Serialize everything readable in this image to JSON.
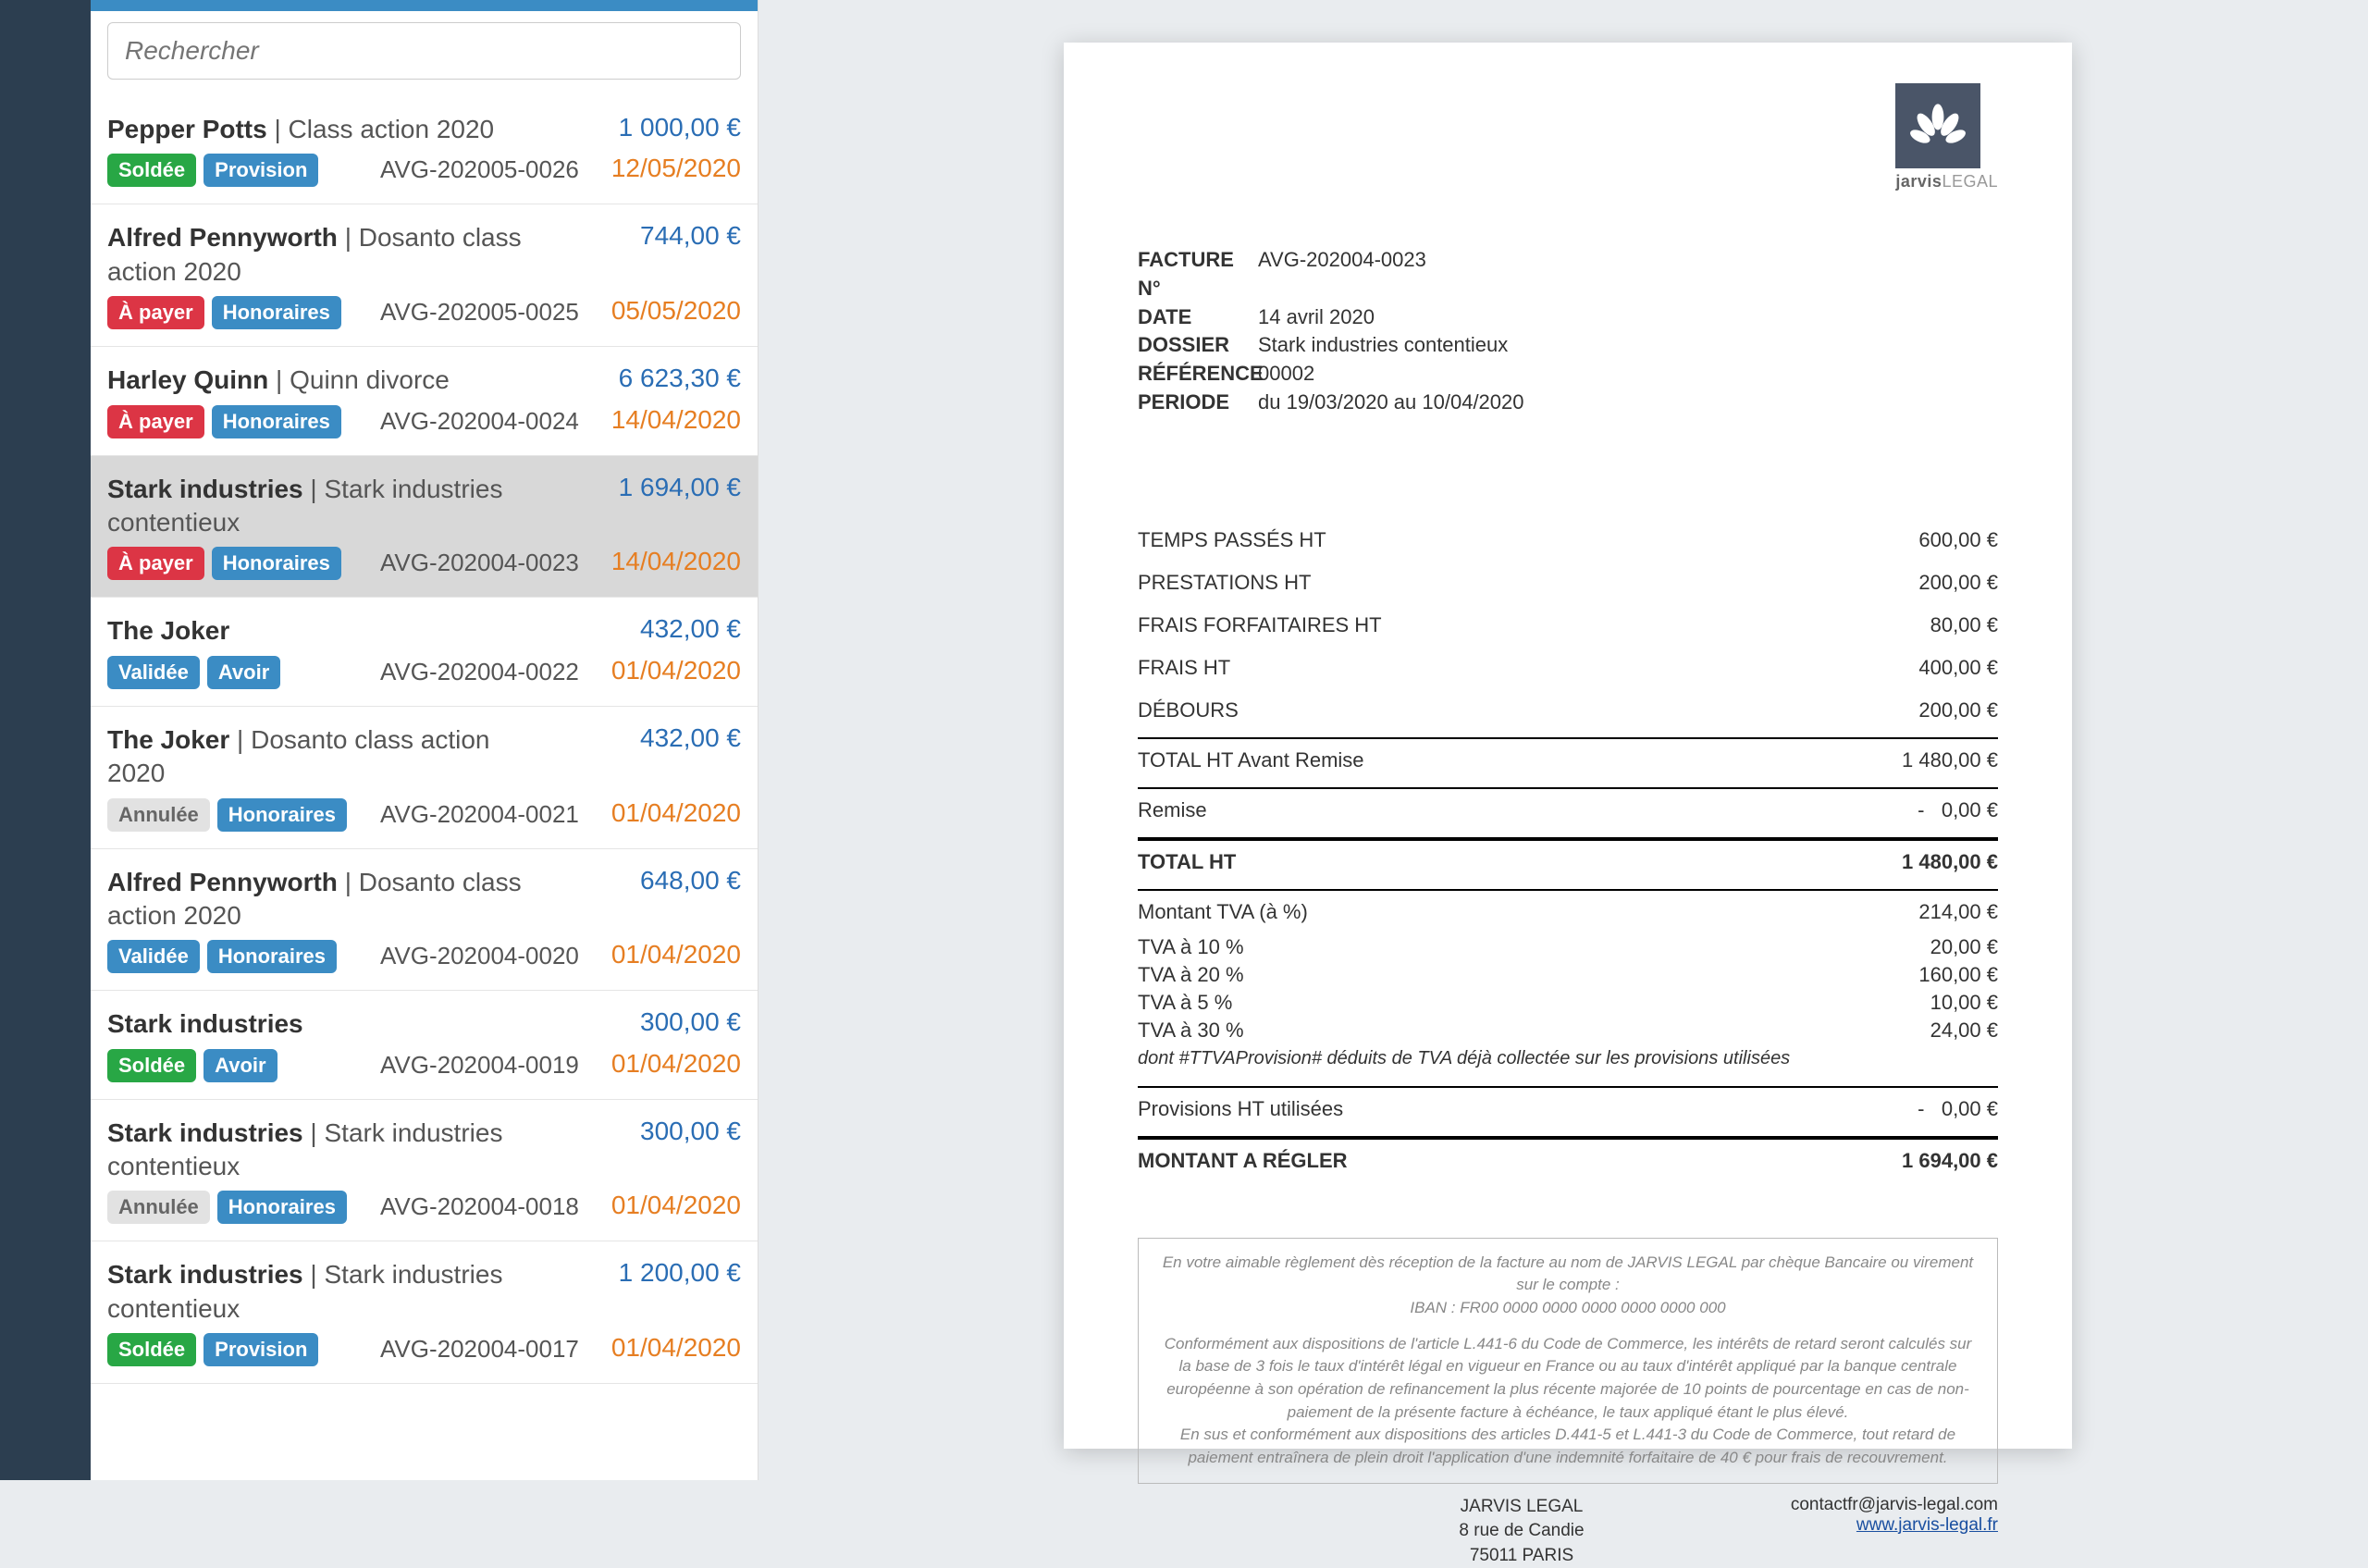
{
  "search": {
    "placeholder": "Rechercher"
  },
  "colors": {
    "accent": "#3b8cc4",
    "sidebar": "#2c3e50",
    "amount": "#2a6db4",
    "date": "#e67e22",
    "badge_green": "#28a745",
    "badge_blue": "#3b8cc4",
    "badge_red": "#dc3545",
    "badge_gray": "#e2e2e2",
    "page_bg": "#e9ecef"
  },
  "badge_labels": {
    "soldee": "Soldée",
    "provision": "Provision",
    "apayer": "À payer",
    "honoraires": "Honoraires",
    "validee": "Validée",
    "avoir": "Avoir",
    "annulee": "Annulée"
  },
  "invoices": [
    {
      "client": "Pepper Potts",
      "case": "Class action 2020",
      "amount": "1 000,00 €",
      "date": "12/05/2020",
      "ref": "AVG-202005-0026",
      "badges": [
        [
          "soldee",
          "green"
        ],
        [
          "provision",
          "blue"
        ]
      ],
      "selected": false
    },
    {
      "client": "Alfred Pennyworth",
      "case": "Dosanto class action 2020",
      "amount": "744,00 €",
      "date": "05/05/2020",
      "ref": "AVG-202005-0025",
      "badges": [
        [
          "apayer",
          "red"
        ],
        [
          "honoraires",
          "blue"
        ]
      ],
      "selected": false
    },
    {
      "client": "Harley Quinn",
      "case": "Quinn divorce",
      "amount": "6 623,30 €",
      "date": "14/04/2020",
      "ref": "AVG-202004-0024",
      "badges": [
        [
          "apayer",
          "red"
        ],
        [
          "honoraires",
          "blue"
        ]
      ],
      "selected": false
    },
    {
      "client": "Stark industries",
      "case": "Stark industries contentieux",
      "amount": "1 694,00 €",
      "date": "14/04/2020",
      "ref": "AVG-202004-0023",
      "badges": [
        [
          "apayer",
          "red"
        ],
        [
          "honoraires",
          "blue"
        ]
      ],
      "selected": true
    },
    {
      "client": "The Joker",
      "case": "",
      "amount": "432,00 €",
      "date": "01/04/2020",
      "ref": "AVG-202004-0022",
      "badges": [
        [
          "validee",
          "blue"
        ],
        [
          "avoir",
          "blue"
        ]
      ],
      "selected": false
    },
    {
      "client": "The Joker",
      "case": "Dosanto class action 2020",
      "amount": "432,00 €",
      "date": "01/04/2020",
      "ref": "AVG-202004-0021",
      "badges": [
        [
          "annulee",
          "gray"
        ],
        [
          "honoraires",
          "blue"
        ]
      ],
      "selected": false
    },
    {
      "client": "Alfred Pennyworth",
      "case": "Dosanto class action 2020",
      "amount": "648,00 €",
      "date": "01/04/2020",
      "ref": "AVG-202004-0020",
      "badges": [
        [
          "validee",
          "blue"
        ],
        [
          "honoraires",
          "blue"
        ]
      ],
      "selected": false
    },
    {
      "client": "Stark industries",
      "case": "",
      "amount": "300,00 €",
      "date": "01/04/2020",
      "ref": "AVG-202004-0019",
      "badges": [
        [
          "soldee",
          "green"
        ],
        [
          "avoir",
          "blue"
        ]
      ],
      "selected": false
    },
    {
      "client": "Stark industries",
      "case": "Stark industries contentieux",
      "amount": "300,00 €",
      "date": "01/04/2020",
      "ref": "AVG-202004-0018",
      "badges": [
        [
          "annulee",
          "gray"
        ],
        [
          "honoraires",
          "blue"
        ]
      ],
      "selected": false
    },
    {
      "client": "Stark industries",
      "case": "Stark industries contentieux",
      "amount": "1 200,00 €",
      "date": "01/04/2020",
      "ref": "AVG-202004-0017",
      "badges": [
        [
          "soldee",
          "green"
        ],
        [
          "provision",
          "blue"
        ]
      ],
      "selected": false
    }
  ],
  "doc": {
    "logo_text_bold": "jarvis",
    "logo_text_thin": "LEGAL",
    "header": {
      "labels": {
        "num": "FACTURE N°",
        "date": "DATE",
        "dossier": "DOSSIER",
        "ref": "RÉFÉRENCE",
        "periode": "PERIODE"
      },
      "num": "AVG-202004-0023",
      "date": "14 avril 2020",
      "dossier": "Stark industries contentieux",
      "ref": "00002",
      "periode": "du 19/03/2020 au 10/04/2020"
    },
    "lines": {
      "temps": {
        "label": "TEMPS PASSÉS HT",
        "value": "600,00 €"
      },
      "prest": {
        "label": "PRESTATIONS HT",
        "value": "200,00 €"
      },
      "forf": {
        "label": "FRAIS FORFAITAIRES HT",
        "value": "80,00 €"
      },
      "frais": {
        "label": "FRAIS HT",
        "value": "400,00 €"
      },
      "deb": {
        "label": "DÉBOURS",
        "value": "200,00 €"
      },
      "subtot": {
        "label": "TOTAL HT Avant Remise",
        "value": "1 480,00 €"
      },
      "remise": {
        "label": "Remise",
        "value": "0,00 €"
      },
      "totht": {
        "label": "TOTAL HT",
        "value": "1 480,00 €"
      },
      "tva": {
        "label": "Montant TVA (à  %)",
        "value": "214,00 €"
      },
      "tva10": {
        "label": "TVA à 10 %",
        "value": "20,00 €"
      },
      "tva20": {
        "label": "TVA à 20 %",
        "value": "160,00 €"
      },
      "tva5": {
        "label": "TVA à 5 %",
        "value": "10,00 €"
      },
      "tva30": {
        "label": "TVA à 30 %",
        "value": "24,00 €"
      },
      "tvanote": "dont #TTVAProvision# déduits de TVA déjà collectée sur les provisions utilisées",
      "prov": {
        "label": "Provisions HT utilisées",
        "value": "0,00 €"
      },
      "total": {
        "label": "MONTANT A RÉGLER",
        "value": "1 694,00 €"
      }
    },
    "legal": {
      "l1": "En votre aimable règlement dès réception de la facture au nom de JARVIS LEGAL par chèque Bancaire ou virement sur le compte :",
      "iban": "IBAN : FR00 0000 0000 0000 0000 0000 000",
      "l2": "Conformément aux dispositions de l'article L.441-6 du Code de Commerce, les intérêts de retard seront calculés sur la base de 3 fois le taux d'intérêt légal en vigueur en France ou au taux d'intérêt appliqué par la banque centrale européenne à son opération de refinancement la plus récente majorée de 10 points de pourcentage en cas de non-paiement de la présente facture à échéance, le taux appliqué étant le plus élevé.",
      "l3": "En sus et conformément aux dispositions des articles D.441-5 et L.441-3 du Code de Commerce, tout retard de paiement entraînera de plein droit l'application d'une indemnité forfaitaire de 40 € pour frais de recouvrement."
    },
    "foot": {
      "company": "JARVIS LEGAL",
      "addr1": "8 rue de Candie",
      "addr2": "75011 PARIS",
      "email": "contactfr@jarvis-legal.com",
      "site": "www.jarvis-legal.fr"
    }
  }
}
